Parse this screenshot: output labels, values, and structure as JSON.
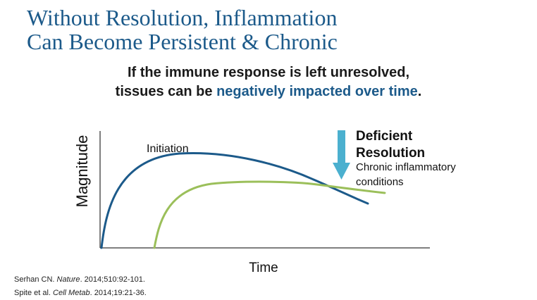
{
  "slide": {
    "title_line1": "Without Resolution, Inflammation",
    "title_line2": "Can Become Persistent & Chronic",
    "subtitle_line1": "If the immune response is left unresolved,",
    "subtitle_line2_prefix": "tissues can be ",
    "subtitle_line2_highlight": "negatively impacted over time",
    "subtitle_line2_suffix": "."
  },
  "diagram": {
    "ylabel": "Magnitude",
    "xlabel": "Time",
    "curve_initiation_label": "Initiation",
    "deficient_label_line1": "Deficient",
    "deficient_label_line2": "Resolution",
    "chronic_label_line1": "Chronic inflammatory",
    "chronic_label_line2": "conditions",
    "colors": {
      "initiation_curve": "#1c5a8a",
      "chronic_curve": "#9bbf5a",
      "arrow": "#4bb0cf",
      "axis": "#555555"
    }
  },
  "references": [
    {
      "authors": "Serhan CN. ",
      "journal": "Nature",
      "details": ". 2014;510:92-101."
    },
    {
      "authors": "Spite et al. ",
      "journal": "Cell Metab",
      "details": ". 2014;19:21-36."
    }
  ]
}
